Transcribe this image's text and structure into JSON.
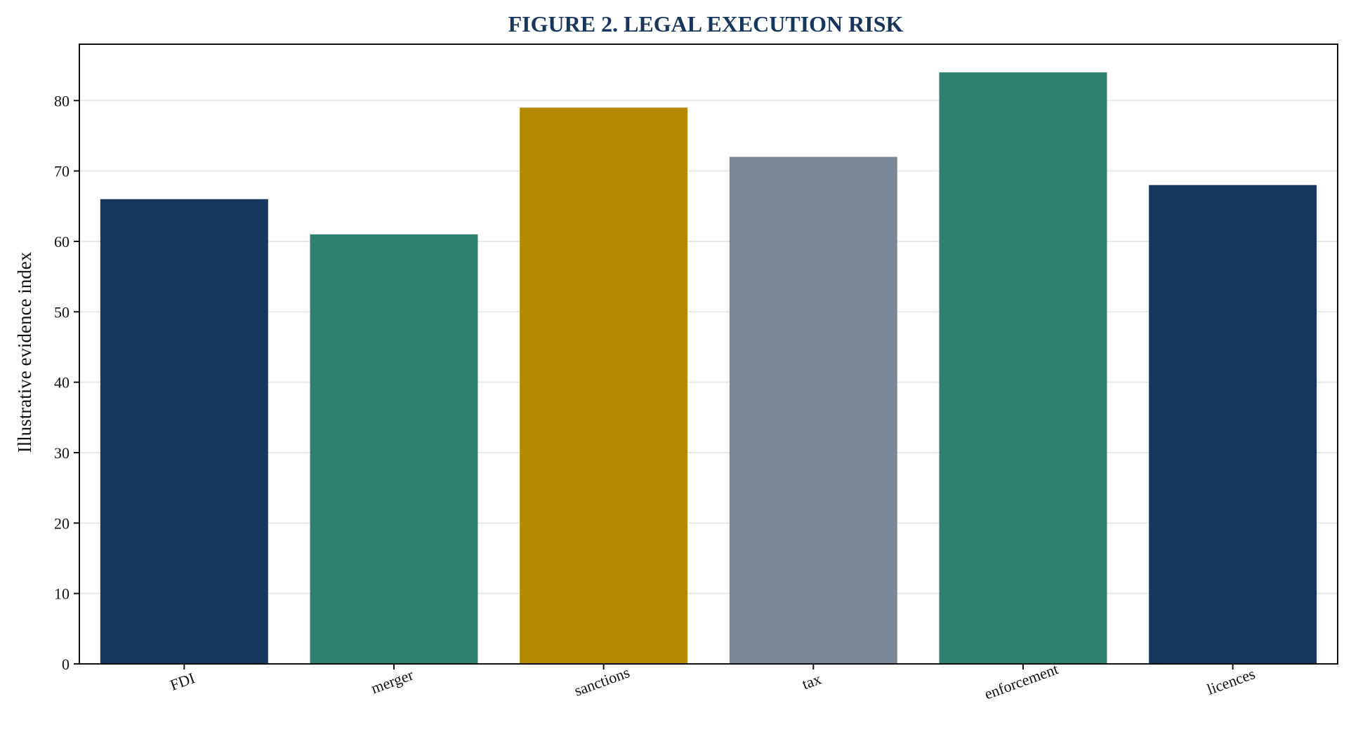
{
  "chart_data": {
    "type": "bar",
    "title": "FIGURE 2. LEGAL EXECUTION RISK",
    "xlabel": "",
    "ylabel": "Illustrative evidence index",
    "categories": [
      "FDI",
      "merger",
      "sanctions",
      "tax",
      "enforcement",
      "licences"
    ],
    "values": [
      66,
      61,
      79,
      72,
      84,
      68
    ],
    "colors": [
      "#17365d",
      "#2e8070",
      "#b38a00",
      "#7a8796",
      "#2e8070",
      "#17365d"
    ],
    "ylim": [
      0,
      88
    ],
    "yticks": [
      0,
      10,
      20,
      30,
      40,
      50,
      60,
      70,
      80
    ],
    "grid": true,
    "legend": "none"
  }
}
